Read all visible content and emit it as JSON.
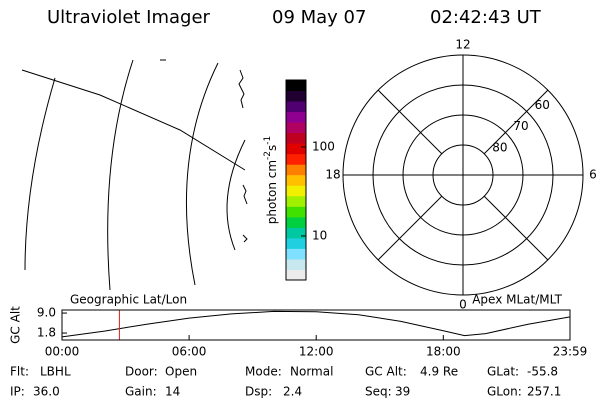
{
  "header": {
    "title": "Ultraviolet Imager",
    "date": "09 May 07",
    "time": "02:42:43 UT"
  },
  "colorbar": {
    "label": {
      "base": "photon cm",
      "exp1": "-2",
      "mid": "s",
      "exp2": "-1"
    },
    "scale": "log",
    "range": [
      3.2,
      565
    ],
    "ticks": [
      10,
      100
    ],
    "colors": [
      "#ececec",
      "#c8e8f0",
      "#80e0ff",
      "#20d0e0",
      "#00c8a0",
      "#00d040",
      "#40e000",
      "#a0f000",
      "#f0f000",
      "#ffc000",
      "#ff8000",
      "#ff2000",
      "#e00000",
      "#c00020",
      "#b00060",
      "#900090",
      "#500070",
      "#200030",
      "#000000"
    ]
  },
  "polar": {
    "lat_limit": 50,
    "lat_labels": [
      60,
      70,
      80
    ],
    "ring_lats": [
      60,
      70,
      80
    ],
    "hours": [
      12,
      18,
      6,
      0
    ],
    "spoke_hours": [
      3,
      9,
      15,
      21
    ]
  },
  "orbit": {
    "left_label": "Geographic Lat/Lon",
    "right_label": "Apex MLat/MLT",
    "ylabel": "GC Alt",
    "xlim": [
      0,
      23.98
    ],
    "ylim": [
      -0.7,
      10.1
    ],
    "xticks": [
      {
        "value": 0,
        "label": "00:00"
      },
      {
        "value": 6,
        "label": "06:00"
      },
      {
        "value": 12,
        "label": "12:00"
      },
      {
        "value": 18,
        "label": "18:00"
      },
      {
        "value": 23.98,
        "label": "23:59"
      }
    ],
    "yticks": [
      {
        "value": 9,
        "label": "9.0"
      },
      1.8
    ],
    "x": [
      0,
      2,
      4,
      6,
      8,
      10,
      12,
      14,
      16,
      18,
      19,
      20,
      22,
      23.98
    ],
    "values": [
      0.4,
      2.5,
      5.0,
      7.2,
      8.7,
      9.6,
      9.5,
      8.4,
      6.0,
      2.6,
      0.9,
      1.6,
      5.0,
      7.6
    ],
    "current": 2.71,
    "current_color": "#e02020"
  },
  "footer": [
    {
      "label": "Flt:",
      "value": "LBHL"
    },
    {
      "label": "Door:",
      "value": "Open"
    },
    {
      "label": "Mode:",
      "value": "Normal"
    },
    {
      "label": "GC Alt:",
      "value": "4.9 Re"
    },
    {
      "label": "GLat:",
      "value": "-55.8"
    },
    {
      "label": "IP:",
      "value": "36.0"
    },
    {
      "label": "Gain:",
      "value": "14"
    },
    {
      "label": "Dsp:",
      "value": "2.4"
    },
    {
      "label": "Seq:",
      "value": "39"
    },
    {
      "label": "GLon:",
      "value": "257.1"
    }
  ]
}
